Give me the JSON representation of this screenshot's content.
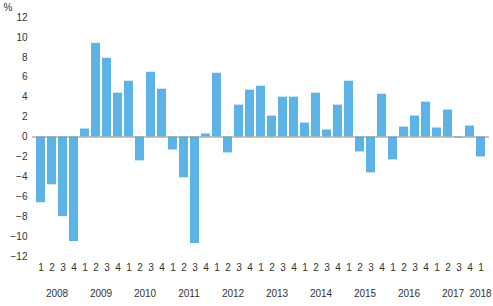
{
  "chart_data": {
    "type": "bar",
    "y_label": "%",
    "categories": [
      "1",
      "2",
      "3",
      "4",
      "1",
      "2",
      "3",
      "4",
      "1",
      "2",
      "3",
      "4",
      "1",
      "2",
      "3",
      "4",
      "1",
      "2",
      "3",
      "4",
      "1",
      "2",
      "3",
      "4",
      "1",
      "2",
      "3",
      "4",
      "1",
      "2",
      "3",
      "4",
      "1",
      "2",
      "3",
      "4",
      "1",
      "2",
      "3",
      "4",
      "1"
    ],
    "year_labels": [
      "2008",
      "2009",
      "2010",
      "2011",
      "2012",
      "2013",
      "2014",
      "2015",
      "2016",
      "2017",
      "2018"
    ],
    "values": [
      -6.6,
      -4.8,
      -8.0,
      -10.5,
      0.8,
      9.4,
      7.9,
      4.4,
      5.6,
      -2.4,
      6.5,
      4.8,
      -1.3,
      -4.1,
      -10.7,
      0.3,
      6.4,
      -1.6,
      3.2,
      4.7,
      5.1,
      2.1,
      4.0,
      4.0,
      1.4,
      4.4,
      0.7,
      3.2,
      5.6,
      -1.5,
      -3.6,
      4.3,
      -2.3,
      1.0,
      2.1,
      3.5,
      0.9,
      2.7,
      -0.1,
      1.1,
      -2.0
    ],
    "color": "#5cb3e6",
    "ylim": [
      -12,
      12
    ],
    "yticks": [
      -12,
      -10,
      -8,
      -6,
      -4,
      -2,
      0,
      2,
      4,
      6,
      8,
      10,
      12
    ],
    "grid": false
  }
}
